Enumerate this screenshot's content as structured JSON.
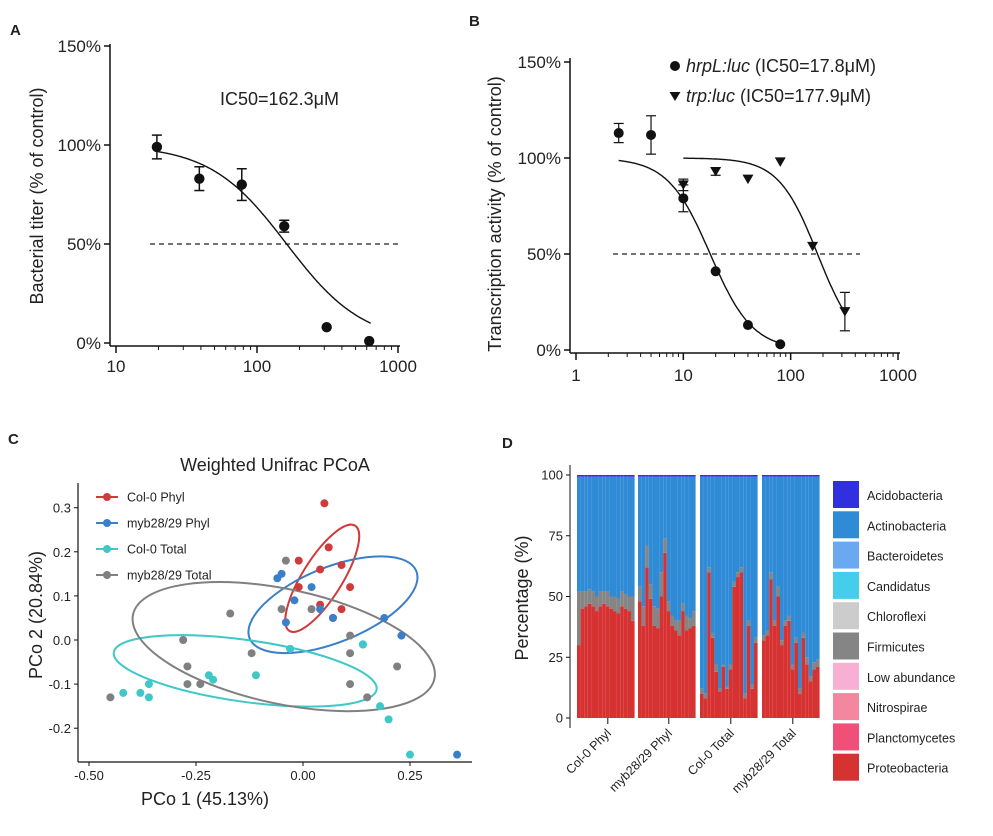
{
  "panels": {
    "a": "A",
    "b": "B",
    "c": "C",
    "d": "D"
  },
  "chart_data": [
    {
      "panel": "A",
      "type": "scatter",
      "ylabel": "Bacterial titer (% of control)",
      "xscale": "log",
      "xlim": [
        10,
        1000
      ],
      "ylim": [
        0,
        150
      ],
      "xticks": [
        "10",
        "100",
        "1000"
      ],
      "yticks": [
        "0%",
        "50%",
        "100%",
        "150%"
      ],
      "annotation": "IC50=162.3μM",
      "reference_line": 50,
      "series": [
        {
          "points": [
            {
              "x": 19.5,
              "y": 99,
              "err": 6
            },
            {
              "x": 39,
              "y": 83,
              "err": 6
            },
            {
              "x": 78,
              "y": 80,
              "err": 8
            },
            {
              "x": 156,
              "y": 59,
              "err": 3
            },
            {
              "x": 312,
              "y": 8,
              "err": 0
            },
            {
              "x": 625,
              "y": 1,
              "err": 0
            }
          ],
          "fit": {
            "top": 100,
            "bottom": 0,
            "ic50": 162.3,
            "hill": 1.6
          }
        }
      ]
    },
    {
      "panel": "B",
      "type": "scatter",
      "ylabel": "Transcription activity (% of control)",
      "xscale": "log",
      "xlim": [
        1,
        1000
      ],
      "ylim": [
        0,
        150
      ],
      "xticks": [
        "1",
        "10",
        "100",
        "1000"
      ],
      "yticks": [
        "0%",
        "50%",
        "100%",
        "150%"
      ],
      "reference_line": 50,
      "legend": [
        {
          "italic": "hrpL:luc",
          "rest": " (IC50=17.8μM)"
        },
        {
          "italic": "trp:luc",
          "rest": " (IC50=177.9μM)"
        }
      ],
      "series": [
        {
          "marker": "circle",
          "points": [
            {
              "x": 2.5,
              "y": 113,
              "err": 5
            },
            {
              "x": 5,
              "y": 112,
              "err": 10
            },
            {
              "x": 10,
              "y": 79,
              "err": 7
            },
            {
              "x": 20,
              "y": 41,
              "err": 0
            },
            {
              "x": 40,
              "y": 13,
              "err": 0
            },
            {
              "x": 80,
              "y": 3,
              "err": 0
            }
          ],
          "fit": {
            "top": 100,
            "bottom": 0,
            "ic50": 17.8,
            "hill": 2.2,
            "xmin": 2.5,
            "xmax": 80
          }
        },
        {
          "marker": "triangle",
          "points": [
            {
              "x": 10,
              "y": 86,
              "err": 3
            },
            {
              "x": 20,
              "y": 93,
              "err": 2
            },
            {
              "x": 40,
              "y": 89,
              "err": 0
            },
            {
              "x": 80,
              "y": 98,
              "err": 0
            },
            {
              "x": 160,
              "y": 54,
              "err": 0
            },
            {
              "x": 320,
              "y": 20,
              "err": 10
            }
          ],
          "fit": {
            "top": 100,
            "bottom": 0,
            "ic50": 177.9,
            "hill": 2.4,
            "xmin": 10,
            "xmax": 320
          }
        }
      ]
    },
    {
      "panel": "C",
      "type": "scatter",
      "title": "Weighted Unifrac PCoA",
      "xlabel": "PCo 1 (45.13%)",
      "ylabel": "PCo 2 (20.84%)",
      "xlim": [
        -0.5,
        0.38
      ],
      "ylim": [
        -0.275,
        0.35
      ],
      "xticks": [
        "-0.50",
        "-0.25",
        "0.00",
        "0.25"
      ],
      "yticks": [
        "-0.2",
        "-0.1",
        "0.0",
        "0.1",
        "0.2",
        "0.3"
      ],
      "legend_position": "top-left",
      "series": [
        {
          "name": "Col-0 Phyl",
          "color": "#d03a3a",
          "points": [
            [
              0.05,
              0.31
            ],
            [
              0.06,
              0.21
            ],
            [
              -0.01,
              0.18
            ],
            [
              0.04,
              0.16
            ],
            [
              0.09,
              0.17
            ],
            [
              0.11,
              0.12
            ],
            [
              0.04,
              0.08
            ],
            [
              0.09,
              0.07
            ],
            [
              0.07,
              0.05
            ],
            [
              -0.01,
              0.12
            ]
          ],
          "ellipse": {
            "cx": 0.045,
            "cy": 0.14,
            "rx": 0.145,
            "ry": 0.045,
            "angle_deg": -58
          }
        },
        {
          "name": "myb28/29 Phyl",
          "color": "#3a7fc8",
          "points": [
            [
              0.02,
              0.12
            ],
            [
              -0.02,
              0.09
            ],
            [
              -0.04,
              0.04
            ],
            [
              -0.06,
              0.14
            ],
            [
              0.07,
              0.05
            ],
            [
              0.19,
              0.05
            ],
            [
              0.23,
              0.01
            ],
            [
              0.14,
              -0.01
            ],
            [
              0.36,
              -0.26
            ],
            [
              0.04,
              0.07
            ],
            [
              -0.05,
              0.15
            ]
          ],
          "ellipse": {
            "cx": 0.07,
            "cy": 0.08,
            "rx": 0.21,
            "ry": 0.085,
            "angle_deg": -22
          }
        },
        {
          "name": "Col-0 Total",
          "color": "#3ec8c8",
          "points": [
            [
              -0.42,
              -0.12
            ],
            [
              -0.38,
              -0.12
            ],
            [
              -0.36,
              -0.1
            ],
            [
              -0.21,
              -0.09
            ],
            [
              -0.22,
              -0.08
            ],
            [
              -0.11,
              -0.08
            ],
            [
              -0.03,
              -0.02
            ],
            [
              0.14,
              -0.01
            ],
            [
              0.18,
              -0.15
            ],
            [
              0.2,
              -0.18
            ],
            [
              0.25,
              -0.26
            ],
            [
              -0.03,
              -0.02
            ],
            [
              -0.36,
              -0.13
            ]
          ],
          "ellipse": {
            "cx": -0.135,
            "cy": -0.07,
            "rx": 0.31,
            "ry": 0.07,
            "angle_deg": 8
          }
        },
        {
          "name": "myb28/29 Total",
          "color": "#808080",
          "points": [
            [
              -0.45,
              -0.13
            ],
            [
              -0.27,
              -0.06
            ],
            [
              -0.27,
              -0.1
            ],
            [
              -0.24,
              -0.1
            ],
            [
              -0.17,
              0.06
            ],
            [
              -0.05,
              0.07
            ],
            [
              0.02,
              0.07
            ],
            [
              0.11,
              -0.03
            ],
            [
              0.11,
              -0.1
            ],
            [
              0.15,
              -0.13
            ],
            [
              0.11,
              0.01
            ],
            [
              -0.04,
              0.18
            ],
            [
              0.22,
              -0.06
            ],
            [
              -0.12,
              -0.03
            ],
            [
              -0.28,
              0.0
            ]
          ],
          "ellipse": {
            "cx": -0.045,
            "cy": -0.015,
            "rx": 0.36,
            "ry": 0.13,
            "angle_deg": 12
          }
        }
      ]
    },
    {
      "panel": "D",
      "type": "bar",
      "stacked": true,
      "ylabel": "Percentage (%)",
      "ylim": [
        0,
        100
      ],
      "yticks": [
        "0",
        "25",
        "50",
        "75",
        "100"
      ],
      "categories": [
        "Col-0 Phyl",
        "myb28/29 Phyl",
        "Col-0 Total",
        "myb28/29 Total"
      ],
      "legend_position": "right",
      "legend": [
        {
          "name": "Acidobacteria",
          "color": "#3030e0"
        },
        {
          "name": "Actinobacteria",
          "color": "#2f8bd6"
        },
        {
          "name": "Bacteroidetes",
          "color": "#6aa9f2"
        },
        {
          "name": "Candidatus",
          "color": "#45cdec"
        },
        {
          "name": "Chloroflexi",
          "color": "#cccccc"
        },
        {
          "name": "Firmicutes",
          "color": "#858585"
        },
        {
          "name": "Low abundance",
          "color": "#f7b0d4"
        },
        {
          "name": "Nitrospirae",
          "color": "#f2879f"
        },
        {
          "name": "Planctomycetes",
          "color": "#f04f78"
        },
        {
          "name": "Proteobacteria",
          "color": "#d63232"
        }
      ],
      "groups": [
        {
          "proteobacteria": [
            30,
            45,
            46,
            47,
            46,
            44,
            46,
            47,
            46,
            45,
            44,
            43,
            46,
            45,
            44,
            40
          ],
          "firmicutes": [
            22,
            7,
            6,
            6,
            6,
            6,
            6,
            5,
            6,
            5,
            6,
            6,
            6,
            6,
            6,
            10
          ]
        },
        {
          "proteobacteria": [
            48,
            38,
            62,
            49,
            38,
            37,
            50,
            68,
            44,
            38,
            36,
            34,
            44,
            36,
            37,
            38
          ],
          "firmicutes": [
            6,
            8,
            9,
            6,
            8,
            8,
            10,
            6,
            4,
            4,
            4,
            6,
            3,
            6,
            4,
            6
          ]
        },
        {
          "proteobacteria": [
            10,
            8,
            60,
            33,
            19,
            11,
            21,
            12,
            20,
            54,
            58,
            60,
            8,
            38,
            12,
            31
          ],
          "firmicutes": [
            2,
            2,
            2,
            2,
            3,
            1,
            1,
            1,
            2,
            2,
            2,
            2,
            2,
            2,
            2,
            2
          ]
        },
        {
          "proteobacteria": [
            32,
            34,
            57,
            38,
            50,
            30,
            38,
            40,
            20,
            31,
            10,
            33,
            22,
            15,
            20,
            21
          ],
          "firmicutes": [
            2,
            2,
            3,
            2,
            4,
            2,
            2,
            2,
            2,
            2,
            2,
            2,
            3,
            2,
            3,
            3
          ]
        }
      ]
    }
  ]
}
